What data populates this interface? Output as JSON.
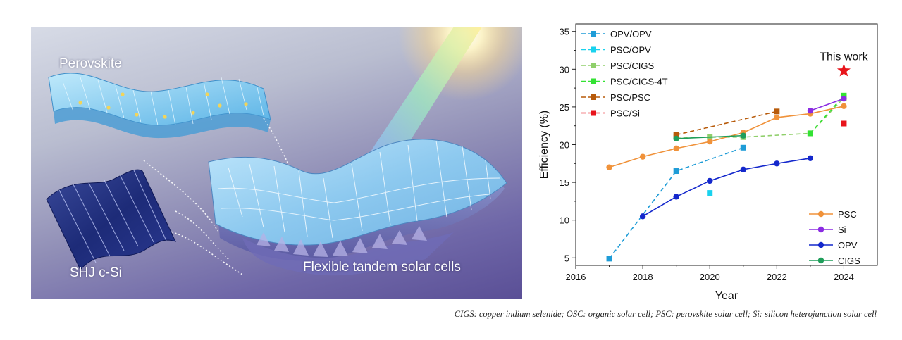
{
  "illustration": {
    "label_perovskite": "Perovskite",
    "label_shj": "SHJ c-Si",
    "label_tandem": "Flexible tandem solar cells"
  },
  "chart_data": {
    "type": "line",
    "xlabel": "Year",
    "ylabel": "Efficiency (%)",
    "xlim": [
      2016,
      2025
    ],
    "ylim": [
      4,
      36
    ],
    "xticks": [
      2016,
      2018,
      2020,
      2022,
      2024
    ],
    "yticks": [
      5,
      10,
      15,
      20,
      25,
      30,
      35
    ],
    "annotation": {
      "text": "This work",
      "x": 2024,
      "y": 29.8,
      "color": "#e8141b",
      "marker": "star"
    },
    "series": [
      {
        "name": "OPV/OPV",
        "color": "#1e9cd7",
        "style": "dashed",
        "marker": "square",
        "x": [
          2017,
          2019,
          2021
        ],
        "y": [
          4.9,
          16.5,
          19.6
        ],
        "group": "dashed"
      },
      {
        "name": "PSC/OPV",
        "color": "#19d2ee",
        "style": "dashed",
        "marker": "square",
        "x": [
          2020
        ],
        "y": [
          13.6
        ],
        "group": "dashed"
      },
      {
        "name": "PSC/CIGS",
        "color": "#8fcf6a",
        "style": "dashed",
        "marker": "square",
        "x": [
          2019,
          2020,
          2021,
          2023,
          2024
        ],
        "y": [
          21.0,
          21.0,
          21.0,
          21.5,
          26.2
        ],
        "group": "dashed"
      },
      {
        "name": "PSC/CIGS-4T",
        "color": "#33e233",
        "style": "dashed",
        "marker": "square",
        "x": [
          2023,
          2024
        ],
        "y": [
          21.5,
          26.5
        ],
        "group": "dashed"
      },
      {
        "name": "PSC/PSC",
        "color": "#b75a0a",
        "style": "dashed",
        "marker": "square",
        "x": [
          2019,
          2022
        ],
        "y": [
          21.3,
          24.4
        ],
        "group": "dashed"
      },
      {
        "name": "PSC/Si",
        "color": "#e8141b",
        "style": "dashed",
        "marker": "square",
        "x": [
          2024
        ],
        "y": [
          22.8
        ],
        "group": "dashed"
      },
      {
        "name": "PSC",
        "color": "#f0923a",
        "style": "solid",
        "marker": "circle",
        "x": [
          2017,
          2018,
          2019,
          2020,
          2021,
          2022,
          2023,
          2024
        ],
        "y": [
          17.0,
          18.4,
          19.5,
          20.4,
          21.6,
          23.6,
          24.1,
          25.1
        ],
        "group": "solid"
      },
      {
        "name": "Si",
        "color": "#8b2be2",
        "style": "solid",
        "marker": "circle",
        "x": [
          2023,
          2024
        ],
        "y": [
          24.5,
          26.1
        ],
        "group": "solid"
      },
      {
        "name": "OPV",
        "color": "#1428cc",
        "style": "solid",
        "marker": "circle",
        "x": [
          2018,
          2019,
          2020,
          2021,
          2022,
          2023
        ],
        "y": [
          10.5,
          13.1,
          15.2,
          16.7,
          17.5,
          18.2
        ],
        "group": "solid"
      },
      {
        "name": "CIGS",
        "color": "#1f9e5a",
        "style": "solid",
        "marker": "circle",
        "x": [
          2019,
          2021
        ],
        "y": [
          20.8,
          21.2
        ],
        "group": "solid"
      }
    ]
  },
  "caption": "CIGS: copper indium selenide; OSC: organic solar cell; PSC: perovskite solar cell; Si: silicon heterojunction solar cell"
}
